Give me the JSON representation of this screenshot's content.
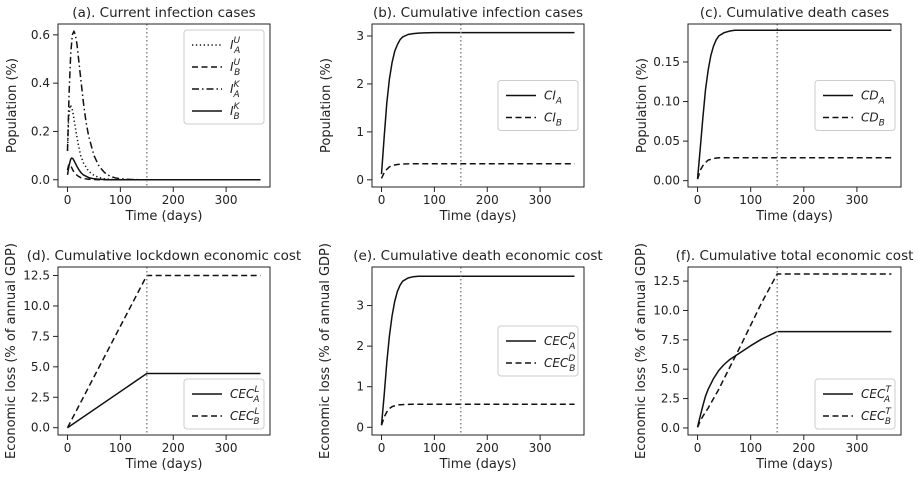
{
  "figure": {
    "panels": [
      {
        "title": "(a). Current infection cases",
        "xlabel": "Time (days)",
        "ylabel": "Population (%)"
      },
      {
        "title": "(b). Cumulative infection cases",
        "xlabel": "Time (days)",
        "ylabel": "Population (%)"
      },
      {
        "title": "(c). Cumulative death cases",
        "xlabel": "Time (days)",
        "ylabel": "Population (%)"
      },
      {
        "title": "(d). Cumulative lockdown economic cost",
        "xlabel": "Time (days)",
        "ylabel": "Economic loss (% of annual GDP)"
      },
      {
        "title": "(e). Cumulative death economic cost",
        "xlabel": "Time (days)",
        "ylabel": "Economic loss (% of annual GDP)"
      },
      {
        "title": "(f). Cumulative total economic cost",
        "xlabel": "Time (days)",
        "ylabel": "Economic loss (% of annual GDP)"
      }
    ]
  },
  "chart_data": [
    {
      "type": "line",
      "title": "(a). Current infection cases",
      "xlabel": "Time (days)",
      "ylabel": "Population (%)",
      "xlim": [
        -18,
        383
      ],
      "ylim": [
        -0.03,
        0.645
      ],
      "xticks": [
        0,
        100,
        200,
        300
      ],
      "yticks": [
        0.0,
        0.2,
        0.4,
        0.6
      ],
      "ytick_labels": [
        "0.0",
        "0.2",
        "0.4",
        "0.6"
      ],
      "vline": 150,
      "legend_position": "top-right",
      "series": [
        {
          "name": "I_A^U",
          "base": "I",
          "sub": "A",
          "sup": "U",
          "style": "dotted",
          "x": [
            0,
            2,
            5,
            8,
            10,
            13,
            16,
            20,
            25,
            30,
            40,
            50,
            60,
            70,
            80,
            100,
            120,
            150,
            365
          ],
          "y": [
            0.12,
            0.25,
            0.31,
            0.3,
            0.28,
            0.24,
            0.2,
            0.15,
            0.1,
            0.07,
            0.035,
            0.018,
            0.009,
            0.004,
            0.002,
            0.0005,
            0,
            0,
            0
          ]
        },
        {
          "name": "I_B^U",
          "base": "I",
          "sub": "B",
          "sup": "U",
          "style": "dashed",
          "x": [
            0,
            2,
            4,
            6,
            8,
            10,
            13,
            16,
            20,
            25,
            30,
            40,
            50,
            60,
            80,
            100,
            150,
            365
          ],
          "y": [
            0.04,
            0.06,
            0.065,
            0.06,
            0.05,
            0.04,
            0.03,
            0.022,
            0.015,
            0.009,
            0.005,
            0.002,
            0.001,
            0,
            0,
            0,
            0,
            0
          ]
        },
        {
          "name": "I_A^K",
          "base": "I",
          "sub": "A",
          "sup": "K",
          "style": "dashdot",
          "x": [
            0,
            3,
            6,
            9,
            12,
            15,
            18,
            21,
            25,
            30,
            35,
            40,
            50,
            60,
            70,
            80,
            90,
            100,
            120,
            150,
            365
          ],
          "y": [
            0.12,
            0.36,
            0.52,
            0.6,
            0.615,
            0.6,
            0.56,
            0.5,
            0.42,
            0.32,
            0.24,
            0.18,
            0.1,
            0.055,
            0.03,
            0.015,
            0.008,
            0.004,
            0.001,
            0,
            0
          ]
        },
        {
          "name": "I_B^K",
          "base": "I",
          "sub": "B",
          "sup": "K",
          "style": "solid",
          "x": [
            0,
            3,
            6,
            8,
            10,
            12,
            15,
            18,
            22,
            26,
            30,
            40,
            50,
            60,
            70,
            80,
            100,
            150,
            365
          ],
          "y": [
            0.02,
            0.06,
            0.085,
            0.09,
            0.088,
            0.08,
            0.068,
            0.055,
            0.04,
            0.028,
            0.02,
            0.009,
            0.004,
            0.002,
            0.001,
            0,
            0,
            0,
            0
          ]
        }
      ]
    },
    {
      "type": "line",
      "title": "(b). Cumulative infection cases",
      "xlabel": "Time (days)",
      "ylabel": "Population (%)",
      "xlim": [
        -18,
        383
      ],
      "ylim": [
        -0.15,
        3.25
      ],
      "xticks": [
        0,
        100,
        200,
        300
      ],
      "yticks": [
        0,
        1,
        2,
        3
      ],
      "ytick_labels": [
        "0",
        "1",
        "2",
        "3"
      ],
      "vline": 150,
      "legend_position": "center-right",
      "series": [
        {
          "name": "CI_A",
          "base": "CI",
          "sub": "A",
          "sup": "",
          "style": "solid",
          "x": [
            0,
            5,
            10,
            15,
            20,
            25,
            30,
            35,
            40,
            50,
            60,
            70,
            80,
            100,
            150,
            365
          ],
          "y": [
            0.12,
            0.9,
            1.6,
            2.1,
            2.45,
            2.68,
            2.82,
            2.92,
            2.98,
            3.03,
            3.05,
            3.06,
            3.065,
            3.07,
            3.07,
            3.07
          ]
        },
        {
          "name": "CI_B",
          "base": "CI",
          "sub": "B",
          "sup": "",
          "style": "dashed",
          "x": [
            0,
            5,
            10,
            15,
            20,
            30,
            40,
            60,
            80,
            100,
            150,
            365
          ],
          "y": [
            0.03,
            0.15,
            0.22,
            0.27,
            0.3,
            0.32,
            0.33,
            0.335,
            0.335,
            0.335,
            0.335,
            0.335
          ]
        }
      ]
    },
    {
      "type": "line",
      "title": "(c). Cumulative death cases",
      "xlabel": "Time (days)",
      "ylabel": "Population (%)",
      "xlim": [
        -18,
        383
      ],
      "ylim": [
        -0.008,
        0.198
      ],
      "xticks": [
        0,
        100,
        200,
        300
      ],
      "yticks": [
        0.0,
        0.05,
        0.1,
        0.15
      ],
      "ytick_labels": [
        "0.00",
        "0.05",
        "0.10",
        "0.15"
      ],
      "vline": 150,
      "legend_position": "center-right",
      "series": [
        {
          "name": "CD_A",
          "base": "CD",
          "sub": "A",
          "sup": "",
          "style": "solid",
          "x": [
            0,
            5,
            10,
            15,
            20,
            25,
            30,
            35,
            40,
            50,
            60,
            70,
            80,
            100,
            150,
            365
          ],
          "y": [
            0.003,
            0.04,
            0.08,
            0.115,
            0.14,
            0.158,
            0.17,
            0.178,
            0.183,
            0.187,
            0.189,
            0.19,
            0.19,
            0.19,
            0.19,
            0.19
          ]
        },
        {
          "name": "CD_B",
          "base": "CD",
          "sub": "B",
          "sup": "",
          "style": "dashed",
          "x": [
            0,
            5,
            10,
            15,
            20,
            30,
            40,
            60,
            80,
            100,
            150,
            365
          ],
          "y": [
            0.002,
            0.013,
            0.019,
            0.023,
            0.026,
            0.028,
            0.029,
            0.029,
            0.029,
            0.029,
            0.029,
            0.029
          ]
        }
      ]
    },
    {
      "type": "line",
      "title": "(d). Cumulative lockdown economic cost",
      "xlabel": "Time (days)",
      "ylabel": "Economic loss (% of annual GDP)",
      "xlim": [
        -18,
        383
      ],
      "ylim": [
        -0.6,
        13.2
      ],
      "xticks": [
        0,
        100,
        200,
        300
      ],
      "yticks": [
        0,
        2.5,
        5,
        7.5,
        10,
        12.5
      ],
      "ytick_labels": [
        "0.0",
        "2.5",
        "5.0",
        "7.5",
        "10.0",
        "12.5"
      ],
      "vline": 150,
      "legend_position": "bottom-right",
      "series": [
        {
          "name": "CEC_A^L",
          "base": "CEC",
          "sub": "A",
          "sup": "L",
          "style": "solid",
          "x": [
            0,
            150,
            365
          ],
          "y": [
            0,
            4.45,
            4.45
          ]
        },
        {
          "name": "CEC_B^L",
          "base": "CEC",
          "sub": "B",
          "sup": "L",
          "style": "dashed",
          "x": [
            0,
            150,
            365
          ],
          "y": [
            0,
            12.5,
            12.5
          ]
        }
      ]
    },
    {
      "type": "line",
      "title": "(e). Cumulative death economic cost",
      "xlabel": "Time (days)",
      "ylabel": "Economic loss (% of annual GDP)",
      "xlim": [
        -18,
        383
      ],
      "ylim": [
        -0.19,
        3.95
      ],
      "xticks": [
        0,
        100,
        200,
        300
      ],
      "yticks": [
        0,
        1,
        2,
        3
      ],
      "ytick_labels": [
        "0",
        "1",
        "2",
        "3"
      ],
      "vline": 150,
      "legend_position": "center-right",
      "series": [
        {
          "name": "CEC_A^D",
          "base": "CEC",
          "sub": "A",
          "sup": "D",
          "style": "solid",
          "x": [
            0,
            5,
            10,
            15,
            20,
            25,
            30,
            35,
            40,
            50,
            60,
            70,
            80,
            100,
            150,
            365
          ],
          "y": [
            0.06,
            0.8,
            1.6,
            2.25,
            2.75,
            3.1,
            3.35,
            3.5,
            3.6,
            3.68,
            3.71,
            3.72,
            3.72,
            3.72,
            3.72,
            3.72
          ]
        },
        {
          "name": "CEC_B^D",
          "base": "CEC",
          "sub": "B",
          "sup": "D",
          "style": "dashed",
          "x": [
            0,
            5,
            10,
            15,
            20,
            30,
            40,
            60,
            80,
            100,
            150,
            365
          ],
          "y": [
            0.05,
            0.25,
            0.38,
            0.46,
            0.51,
            0.55,
            0.56,
            0.57,
            0.57,
            0.57,
            0.57,
            0.57
          ]
        }
      ]
    },
    {
      "type": "line",
      "title": "(f). Cumulative total economic cost",
      "xlabel": "Time (days)",
      "ylabel": "Economic loss (% of annual GDP)",
      "xlim": [
        -18,
        383
      ],
      "ylim": [
        -0.6,
        13.7
      ],
      "xticks": [
        0,
        100,
        200,
        300
      ],
      "yticks": [
        0,
        2.5,
        5,
        7.5,
        10,
        12.5
      ],
      "ytick_labels": [
        "0.0",
        "2.5",
        "5.0",
        "7.5",
        "10.0",
        "12.5"
      ],
      "vline": 150,
      "legend_position": "bottom-right",
      "series": [
        {
          "name": "CEC_A^T",
          "base": "CEC",
          "sub": "A",
          "sup": "T",
          "style": "solid",
          "x": [
            0,
            5,
            10,
            15,
            20,
            30,
            40,
            50,
            60,
            80,
            100,
            120,
            150,
            365
          ],
          "y": [
            0.1,
            1.0,
            1.9,
            2.7,
            3.3,
            4.2,
            4.9,
            5.4,
            5.8,
            6.4,
            7.0,
            7.55,
            8.2,
            8.2
          ]
        },
        {
          "name": "CEC_B^T",
          "base": "CEC",
          "sub": "B",
          "sup": "T",
          "style": "dashed",
          "x": [
            0,
            5,
            10,
            15,
            20,
            40,
            60,
            80,
            100,
            120,
            150,
            365
          ],
          "y": [
            0.05,
            0.6,
            1.0,
            1.35,
            1.7,
            3.3,
            5.1,
            6.9,
            8.75,
            10.6,
            13.1,
            13.1
          ]
        }
      ]
    }
  ]
}
